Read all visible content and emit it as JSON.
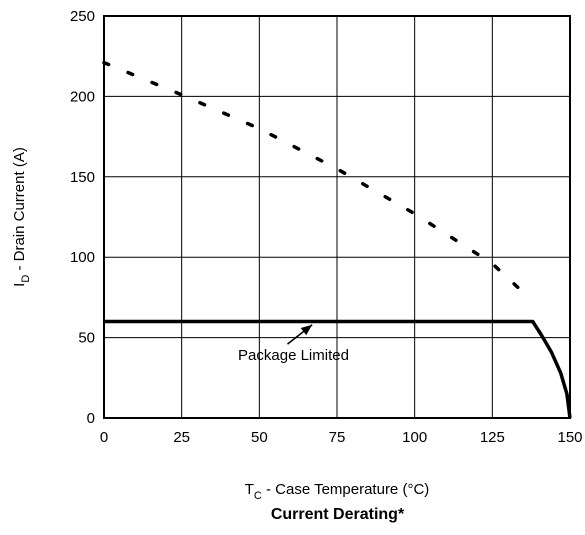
{
  "chart_data": {
    "type": "line",
    "title": "Current Derating*",
    "xlabel": {
      "main": "T",
      "sub": "C",
      "rest": " - Case Temperature (°C)"
    },
    "ylabel": {
      "main": "I",
      "sub": "D",
      "rest": " - Drain Current (A)"
    },
    "xlim": [
      0,
      150
    ],
    "ylim": [
      0,
      250
    ],
    "x_ticks": [
      "0",
      "25",
      "50",
      "75",
      "100",
      "125",
      "150"
    ],
    "y_ticks": [
      "0",
      "50",
      "100",
      "150",
      "200",
      "250"
    ],
    "grid": true,
    "series": [
      {
        "style": "dashed",
        "x": [
          0,
          25,
          50,
          75,
          100,
          125,
          135
        ],
        "y": [
          221,
          201,
          180,
          155,
          127,
          96,
          78
        ]
      },
      {
        "style": "solid",
        "x": [
          0,
          138,
          141,
          144,
          147,
          149,
          150
        ],
        "y": [
          60,
          60,
          51,
          41,
          28,
          15,
          0
        ]
      }
    ],
    "annotations": [
      {
        "text": "Package Limited",
        "x": 61,
        "y": 36,
        "arrow_to": [
          67,
          58
        ]
      }
    ]
  }
}
